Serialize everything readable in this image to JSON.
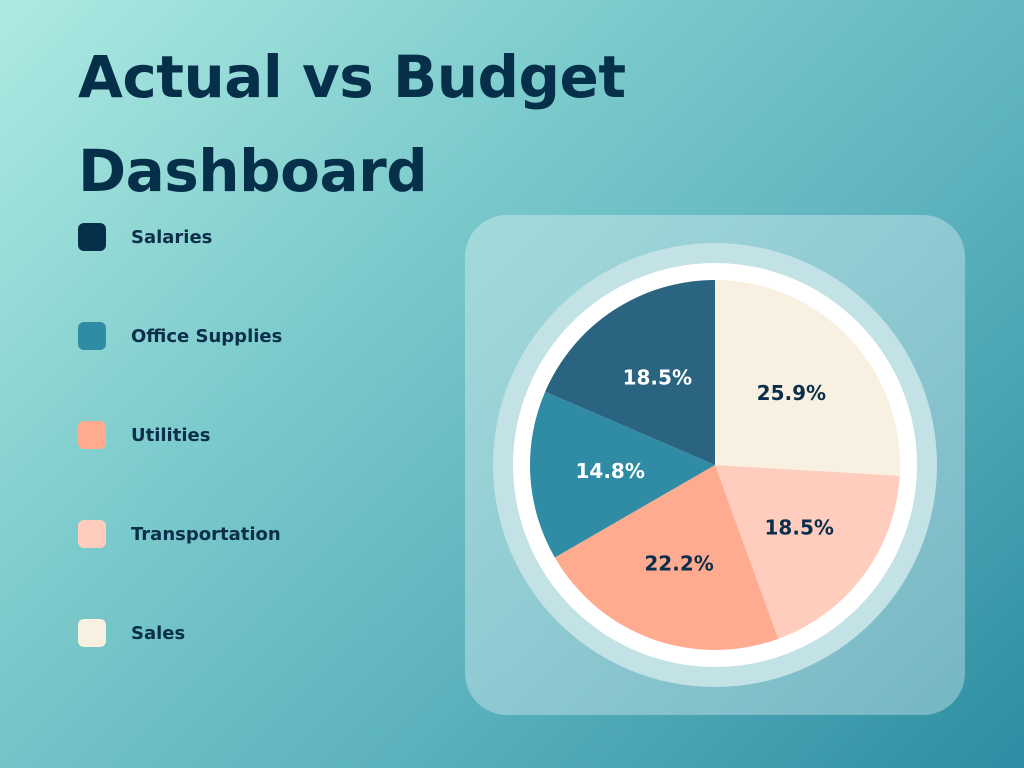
{
  "title": "Actual vs Budget Dashboard",
  "colors": {
    "title": "#06304a",
    "label_dark": "#0b2f4a",
    "label_light": "#ffffff",
    "ring_outer": "#c3e2e6",
    "ring_white": "#ffffff"
  },
  "chart_data": {
    "type": "pie",
    "title": "Actual vs Budget Dashboard",
    "legend_position": "left",
    "slices": [
      {
        "name": "Sales",
        "value": 25.9,
        "label": "25.9%",
        "color": "#f8f1e2",
        "label_color": "#0b2f4a"
      },
      {
        "name": "Transportation",
        "value": 18.5,
        "label": "18.5%",
        "color": "#ffcdbd",
        "label_color": "#0b2f4a"
      },
      {
        "name": "Utilities",
        "value": 22.2,
        "label": "22.2%",
        "color": "#ffab8f",
        "label_color": "#0b2f4a"
      },
      {
        "name": "Office Supplies",
        "value": 14.8,
        "label": "14.8%",
        "color": "#2f8ca4",
        "label_color": "#ffffff"
      },
      {
        "name": "Salaries",
        "value": 18.5,
        "label": "18.5%",
        "color": "#2b6480",
        "label_color": "#ffffff"
      }
    ],
    "legend": [
      {
        "label": "Salaries",
        "color": "#06304a"
      },
      {
        "label": "Office Supplies",
        "color": "#2f8ca4"
      },
      {
        "label": "Utilities",
        "color": "#ffab8f"
      },
      {
        "label": "Transportation",
        "color": "#ffcdbd"
      },
      {
        "label": "Sales",
        "color": "#f8f1e2"
      }
    ]
  }
}
